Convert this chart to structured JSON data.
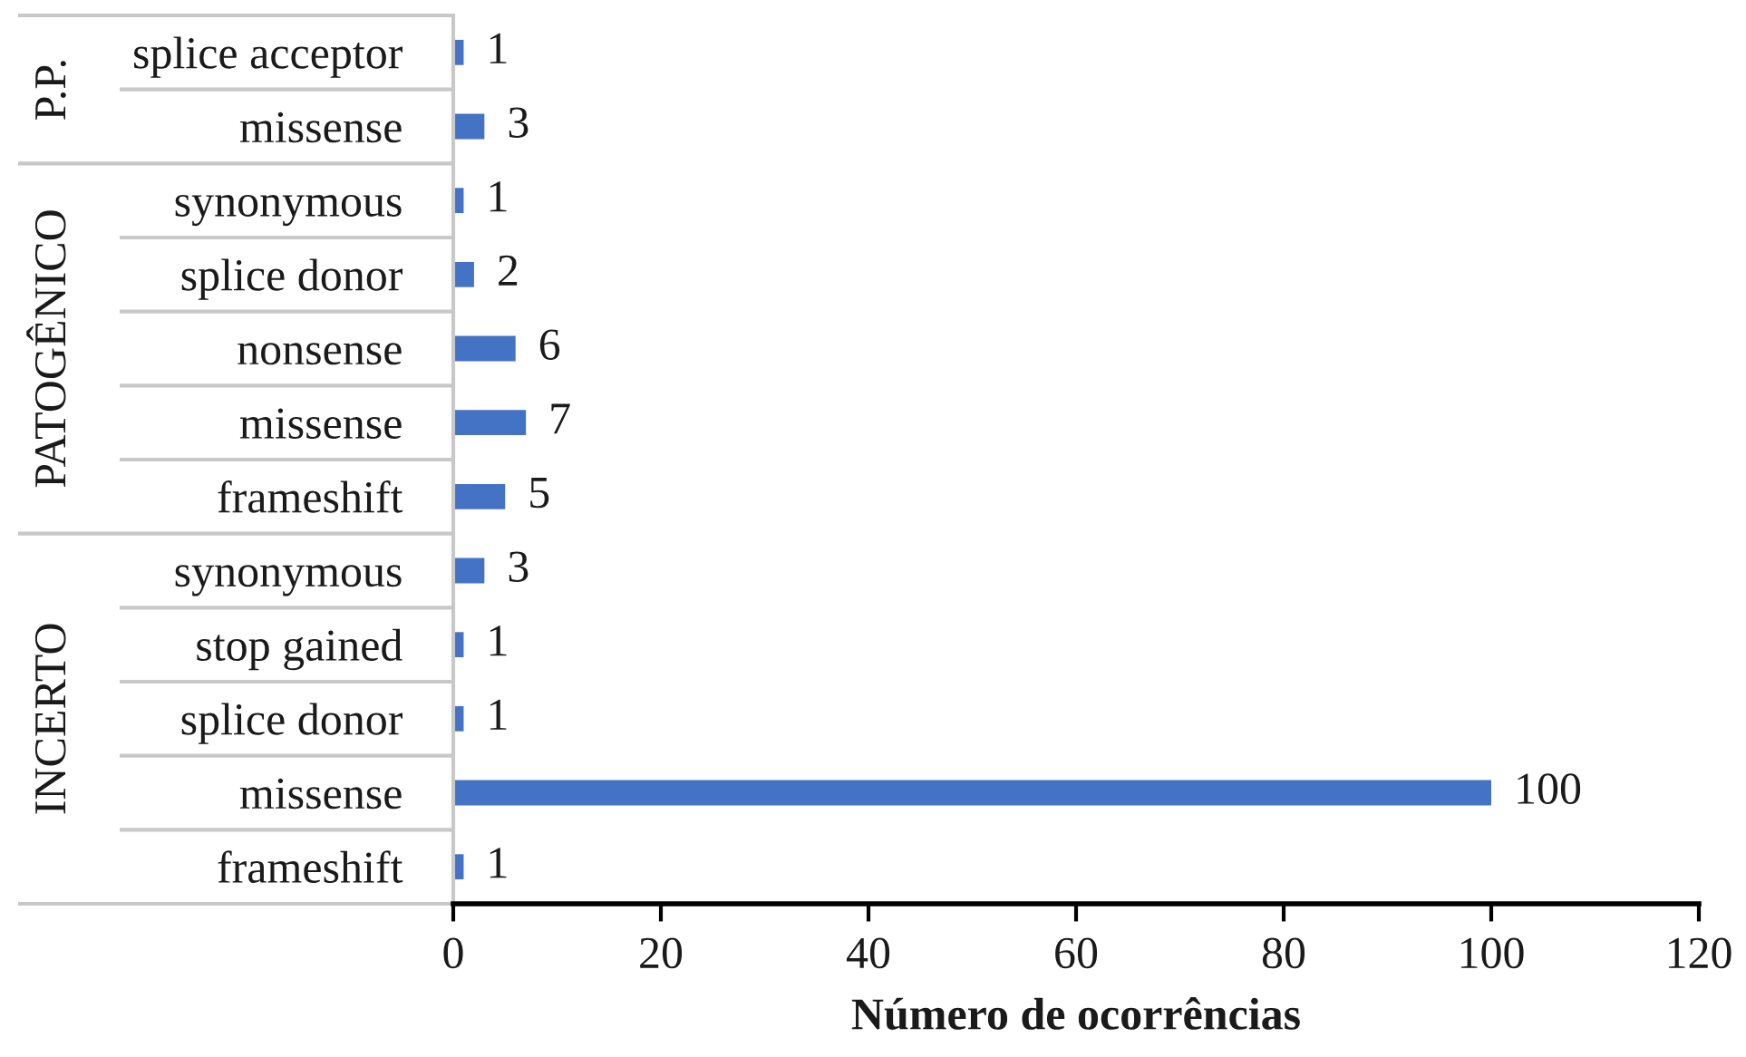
{
  "chart_data": {
    "type": "bar",
    "orientation": "horizontal",
    "categories": [
      "splice acceptor",
      "missense",
      "synonymous",
      "splice donor",
      "nonsense",
      "missense",
      "frameshift",
      "synonymous",
      "stop gained",
      "splice donor",
      "missense",
      "frameshift"
    ],
    "series": [
      {
        "color": "#4472c4",
        "values": [
          1,
          3,
          null,
          null,
          null,
          null,
          null,
          null,
          null,
          null,
          null,
          null
        ]
      },
      {
        "color": "#4472c4",
        "values": [
          null,
          null,
          1,
          2,
          6,
          7,
          5,
          null,
          null,
          null,
          null,
          null
        ]
      },
      {
        "color": "#4472c4",
        "values": [
          null,
          null,
          null,
          null,
          null,
          null,
          null,
          3,
          1,
          1,
          100,
          1
        ]
      }
    ],
    "annotations": [
      "P.P.",
      "PATOGÊNICO",
      "INCERTO"
    ],
    "data_labels": true,
    "xlim": [
      0,
      120
    ],
    "xticks": [
      0,
      20,
      40,
      60,
      80,
      100,
      120
    ],
    "xlabel": "Número de ocorrências"
  }
}
